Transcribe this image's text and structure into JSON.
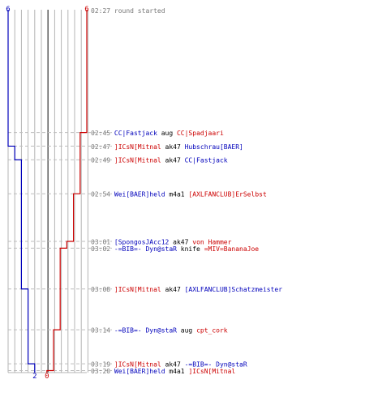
{
  "colors": {
    "blue": "#0000bb",
    "red": "#cc0000",
    "gray": "#777777",
    "grid": "#b4b4b4",
    "center": "#666666",
    "dash": "#bdbdbd"
  },
  "axis": {
    "team_blue_start": "6",
    "team_red_start": "6",
    "team_blue_end": "2",
    "team_red_end": "0"
  },
  "chart_data": {
    "type": "line",
    "series": [
      {
        "team": "blue",
        "steps": [
          {
            "time": "02:27",
            "alive": 6
          },
          {
            "time": "02:47",
            "alive": 5
          },
          {
            "time": "02:49",
            "alive": 4
          },
          {
            "time": "03:08",
            "alive": 3
          },
          {
            "time": "03:19",
            "alive": 2
          }
        ]
      },
      {
        "team": "red",
        "steps": [
          {
            "time": "02:27",
            "alive": 6
          },
          {
            "time": "02:45",
            "alive": 5
          },
          {
            "time": "02:54",
            "alive": 4
          },
          {
            "time": "03:01",
            "alive": 3
          },
          {
            "time": "03:02",
            "alive": 2
          },
          {
            "time": "03:14",
            "alive": 1
          },
          {
            "time": "03:20",
            "alive": 0
          }
        ]
      }
    ]
  },
  "events": [
    {
      "time": "02:27",
      "parts": [
        {
          "t": "round started",
          "c": "gray"
        }
      ]
    },
    {
      "time": "02:45",
      "parts": [
        {
          "t": "CC|Fastjack",
          "c": "blue"
        },
        {
          "t": " aug ",
          "c": "black"
        },
        {
          "t": "CC|Spadjaari",
          "c": "red"
        }
      ]
    },
    {
      "time": "02:47",
      "parts": [
        {
          "t": "]ICsN[Mitnal",
          "c": "red"
        },
        {
          "t": " ak47 ",
          "c": "black"
        },
        {
          "t": "Hubschrau[BAER]",
          "c": "blue"
        }
      ]
    },
    {
      "time": "02:49",
      "parts": [
        {
          "t": "]ICsN[Mitnal",
          "c": "red"
        },
        {
          "t": " ak47 ",
          "c": "black"
        },
        {
          "t": "CC|Fastjack",
          "c": "blue"
        }
      ]
    },
    {
      "time": "02:54",
      "parts": [
        {
          "t": "Wei[BAER]held",
          "c": "blue"
        },
        {
          "t": " m4a1 ",
          "c": "black"
        },
        {
          "t": "[AXLFANCLUB]ErSelbst",
          "c": "red"
        }
      ]
    },
    {
      "time": "03:01",
      "parts": [
        {
          "t": "[SpongosJAcc12",
          "c": "blue"
        },
        {
          "t": " ak47 ",
          "c": "black"
        },
        {
          "t": "von Hammer",
          "c": "red"
        }
      ]
    },
    {
      "time": "03:02",
      "parts": [
        {
          "t": "-=BIB=- Dyn@staR",
          "c": "blue"
        },
        {
          "t": " knife ",
          "c": "black"
        },
        {
          "t": "=MIV=BananaJoe",
          "c": "red"
        }
      ]
    },
    {
      "time": "03:08",
      "parts": [
        {
          "t": "]ICsN[Mitnal",
          "c": "red"
        },
        {
          "t": " ak47 ",
          "c": "black"
        },
        {
          "t": "[AXLFANCLUB]Schatzmeister",
          "c": "blue"
        }
      ]
    },
    {
      "time": "03:14",
      "parts": [
        {
          "t": "-=BIB=- Dyn@staR",
          "c": "blue"
        },
        {
          "t": " aug ",
          "c": "black"
        },
        {
          "t": "cpt_cork",
          "c": "red"
        }
      ]
    },
    {
      "time": "03:19",
      "parts": [
        {
          "t": "]ICsN[Mitnal",
          "c": "red"
        },
        {
          "t": " ak47 ",
          "c": "black"
        },
        {
          "t": "-=BIB=- Dyn@staR",
          "c": "blue"
        }
      ]
    },
    {
      "time": "03:20",
      "parts": [
        {
          "t": "Wei[BAER]held",
          "c": "blue"
        },
        {
          "t": " m4a1 ",
          "c": "black"
        },
        {
          "t": "]ICsN[Mitnal",
          "c": "red"
        }
      ]
    }
  ]
}
